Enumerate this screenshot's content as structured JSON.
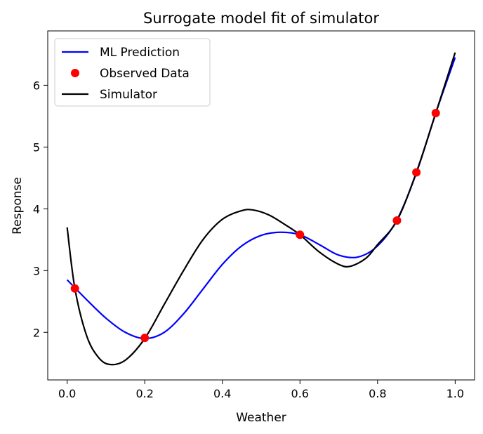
{
  "chart_data": {
    "type": "line",
    "title": "Surrogate model fit of simulator",
    "xlabel": "Weather",
    "ylabel": "Response",
    "xlim": [
      -0.05,
      1.05
    ],
    "ylim": [
      1.23,
      6.88
    ],
    "xticks": [
      0.0,
      0.2,
      0.4,
      0.6,
      0.8,
      1.0
    ],
    "xtick_labels": [
      "0.0",
      "0.2",
      "0.4",
      "0.6",
      "0.8",
      "1.0"
    ],
    "yticks": [
      2,
      3,
      4,
      5,
      6
    ],
    "ytick_labels": [
      "2",
      "3",
      "4",
      "5",
      "6"
    ],
    "grid": false,
    "legend_position": "top-left",
    "series": [
      {
        "name": "ML Prediction",
        "kind": "line",
        "color": "#0000ff",
        "x": [
          0.0,
          0.05,
          0.1,
          0.15,
          0.2,
          0.25,
          0.3,
          0.35,
          0.4,
          0.45,
          0.5,
          0.55,
          0.6,
          0.65,
          0.7,
          0.75,
          0.8,
          0.85,
          0.9,
          0.95,
          1.0
        ],
        "y": [
          2.85,
          2.53,
          2.23,
          2.0,
          1.9,
          2.0,
          2.3,
          2.7,
          3.1,
          3.4,
          3.57,
          3.62,
          3.58,
          3.42,
          3.25,
          3.22,
          3.4,
          3.82,
          4.58,
          5.55,
          6.45
        ]
      },
      {
        "name": "Observed Data",
        "kind": "scatter",
        "color": "#ff0000",
        "x": [
          0.02,
          0.2,
          0.6,
          0.85,
          0.9,
          0.95
        ],
        "y": [
          2.71,
          1.91,
          3.58,
          3.81,
          4.59,
          5.55
        ]
      },
      {
        "name": "Simulator",
        "kind": "line",
        "color": "#000000",
        "x": [
          0.0,
          0.02,
          0.05,
          0.08,
          0.11,
          0.15,
          0.2,
          0.25,
          0.3,
          0.35,
          0.4,
          0.45,
          0.48,
          0.52,
          0.56,
          0.6,
          0.65,
          0.7,
          0.73,
          0.77,
          0.8,
          0.85,
          0.9,
          0.95,
          1.0
        ],
        "y": [
          3.7,
          2.71,
          1.95,
          1.6,
          1.48,
          1.55,
          1.9,
          2.45,
          3.0,
          3.5,
          3.83,
          3.97,
          3.98,
          3.9,
          3.75,
          3.58,
          3.3,
          3.1,
          3.07,
          3.2,
          3.42,
          3.81,
          4.59,
          5.55,
          6.53
        ]
      }
    ]
  }
}
